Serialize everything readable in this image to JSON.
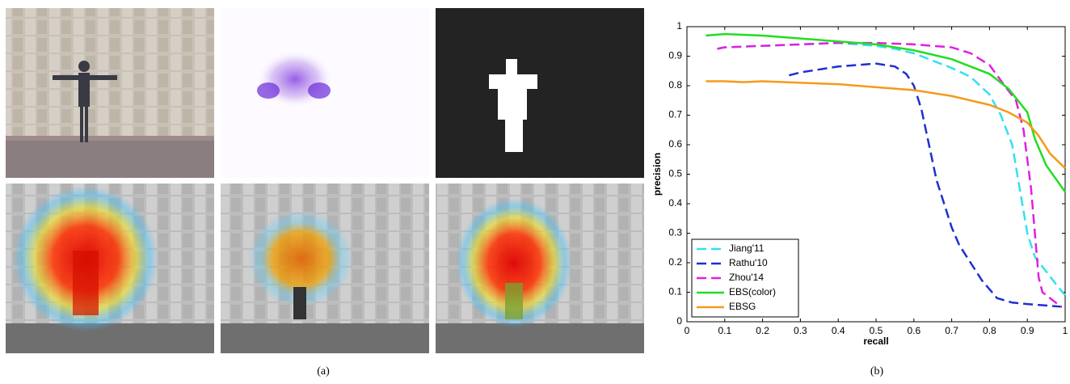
{
  "chart_data": {
    "type": "line",
    "xlabel": "recall",
    "ylabel": "precision",
    "xlim": [
      0,
      1
    ],
    "ylim": [
      0,
      1
    ],
    "xticks": [
      0,
      0.1,
      0.2,
      0.3,
      0.4,
      0.5,
      0.6,
      0.7,
      0.8,
      0.9,
      1
    ],
    "yticks": [
      0,
      0.1,
      0.2,
      0.3,
      0.4,
      0.5,
      0.6,
      0.7,
      0.8,
      0.9,
      1
    ],
    "legend": "lower left",
    "series": [
      {
        "name": "Jiang'11",
        "color": "#33e0f0",
        "linestyle": "dashed",
        "x": [
          0.08,
          0.1,
          0.2,
          0.3,
          0.4,
          0.5,
          0.55,
          0.6,
          0.65,
          0.7,
          0.75,
          0.8,
          0.83,
          0.86,
          0.88,
          0.9,
          0.92,
          0.95,
          0.98,
          1.0
        ],
        "values": [
          0.925,
          0.93,
          0.935,
          0.94,
          0.945,
          0.935,
          0.925,
          0.91,
          0.885,
          0.86,
          0.83,
          0.77,
          0.7,
          0.6,
          0.45,
          0.3,
          0.22,
          0.17,
          0.12,
          0.09
        ]
      },
      {
        "name": "Rathu'10",
        "color": "#1f2fd0",
        "linestyle": "dashed",
        "x": [
          0.27,
          0.3,
          0.35,
          0.4,
          0.45,
          0.5,
          0.55,
          0.58,
          0.6,
          0.62,
          0.64,
          0.66,
          0.68,
          0.7,
          0.72,
          0.75,
          0.78,
          0.82,
          0.86,
          0.9,
          0.95,
          1.0
        ],
        "values": [
          0.835,
          0.845,
          0.855,
          0.865,
          0.87,
          0.875,
          0.865,
          0.84,
          0.8,
          0.72,
          0.6,
          0.48,
          0.4,
          0.32,
          0.26,
          0.2,
          0.14,
          0.08,
          0.065,
          0.06,
          0.055,
          0.05
        ]
      },
      {
        "name": "Zhou'14",
        "color": "#e020e0",
        "linestyle": "dashed",
        "x": [
          0.08,
          0.1,
          0.2,
          0.3,
          0.4,
          0.5,
          0.6,
          0.7,
          0.75,
          0.8,
          0.84,
          0.87,
          0.89,
          0.9,
          0.91,
          0.92,
          0.93,
          0.94,
          0.97,
          0.99
        ],
        "values": [
          0.925,
          0.93,
          0.935,
          0.94,
          0.945,
          0.945,
          0.94,
          0.93,
          0.91,
          0.87,
          0.8,
          0.75,
          0.65,
          0.55,
          0.45,
          0.3,
          0.15,
          0.1,
          0.07,
          0.05
        ]
      },
      {
        "name": "EBS(color)",
        "color": "#22dd22",
        "linestyle": "solid",
        "x": [
          0.05,
          0.1,
          0.2,
          0.3,
          0.4,
          0.5,
          0.6,
          0.7,
          0.8,
          0.85,
          0.9,
          0.92,
          0.95,
          1.0
        ],
        "values": [
          0.97,
          0.975,
          0.97,
          0.96,
          0.95,
          0.94,
          0.92,
          0.89,
          0.84,
          0.79,
          0.71,
          0.62,
          0.53,
          0.44
        ]
      },
      {
        "name": "EBSG",
        "color": "#f59a1a",
        "linestyle": "solid",
        "x": [
          0.05,
          0.1,
          0.15,
          0.2,
          0.3,
          0.4,
          0.5,
          0.6,
          0.7,
          0.8,
          0.85,
          0.9,
          0.93,
          0.96,
          1.0
        ],
        "values": [
          0.815,
          0.815,
          0.812,
          0.815,
          0.81,
          0.805,
          0.795,
          0.785,
          0.765,
          0.735,
          0.71,
          0.675,
          0.63,
          0.57,
          0.52
        ]
      }
    ]
  },
  "captions": [
    "(a)",
    "(b)"
  ]
}
